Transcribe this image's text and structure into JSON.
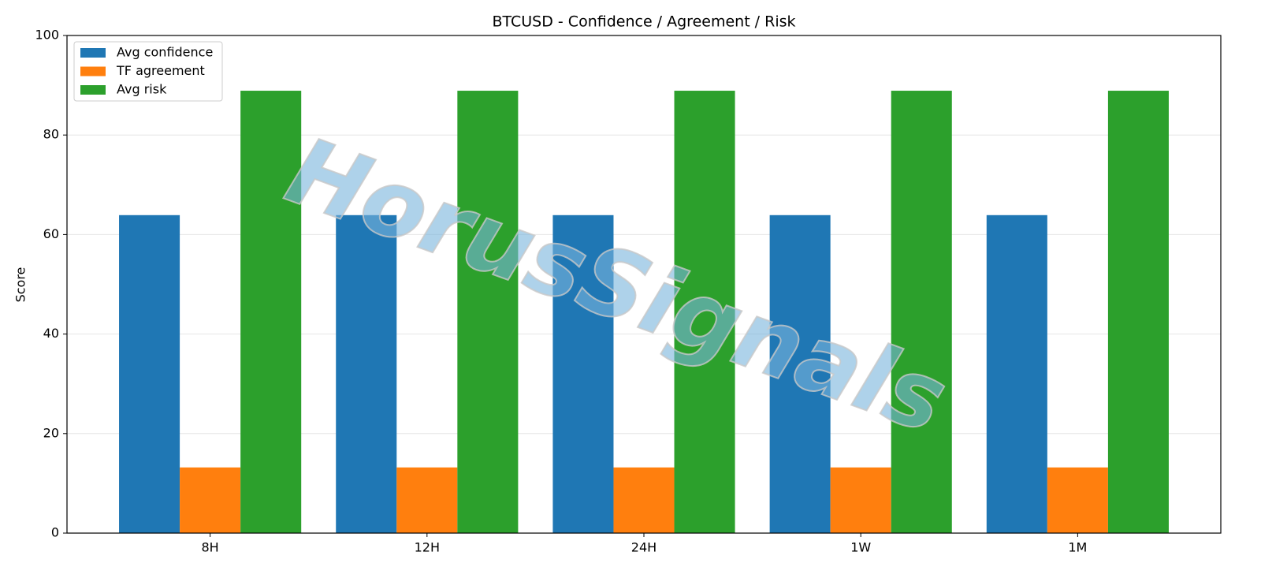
{
  "chart_data": {
    "type": "bar",
    "title": "BTCUSD - Confidence / Agreement / Risk",
    "y_label": "Score",
    "categories": [
      "8H",
      "12H",
      "24H",
      "1W",
      "1M"
    ],
    "series": [
      {
        "name": "Avg confidence",
        "color": "#1f77b4",
        "values": [
          63.9,
          63.9,
          63.9,
          63.9,
          63.9
        ]
      },
      {
        "name": "TF agreement",
        "color": "#ff7f0e",
        "values": [
          13.2,
          13.2,
          13.2,
          13.2,
          13.2
        ]
      },
      {
        "name": "Avg risk",
        "color": "#2ca02c",
        "values": [
          88.9,
          88.9,
          88.9,
          88.9,
          88.9
        ]
      }
    ],
    "ylim": [
      0,
      100
    ],
    "yticks": [
      0,
      20,
      40,
      60,
      80,
      100
    ],
    "grid": true,
    "legend": "upper left",
    "watermark": "HorusSignals"
  }
}
